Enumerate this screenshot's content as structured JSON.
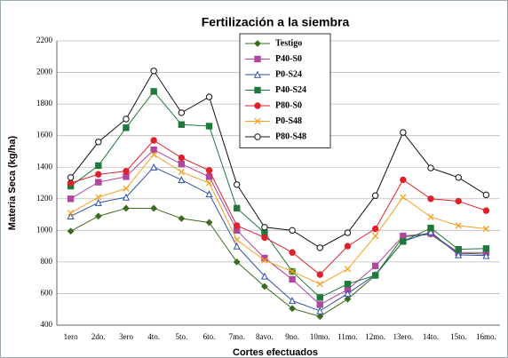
{
  "chart_data": {
    "type": "line",
    "title": "Fertilización a la siembra",
    "xlabel": "Cortes efectuados",
    "ylabel": "Materia Seca (kg/ha)",
    "categories": [
      "1ero",
      "2do.",
      "3ero",
      "4to.",
      "5to.",
      "6to.",
      "7mo.",
      "8avo.",
      "9no.",
      "10mo.",
      "11mo.",
      "12mo.",
      "13ero.",
      "14to.",
      "15to.",
      "16mo."
    ],
    "ylim": [
      400,
      2200
    ],
    "yticks": [
      400,
      600,
      800,
      1000,
      1200,
      1400,
      1600,
      1800,
      2000,
      2200
    ],
    "grid": true,
    "legend": "top",
    "series": [
      {
        "name": "Testigo",
        "color": "#3a6b1e",
        "marker": "diamond",
        "values": [
          995,
          1090,
          1140,
          1140,
          1075,
          1050,
          800,
          645,
          505,
          455,
          565,
          715,
          960,
          975,
          855,
          850
        ]
      },
      {
        "name": "P40-S0",
        "color": "#b0469e",
        "marker": "square",
        "values": [
          1200,
          1305,
          1340,
          1510,
          1420,
          1340,
          1000,
          825,
          690,
          530,
          625,
          775,
          965,
          980,
          860,
          860
        ]
      },
      {
        "name": "P0-S24",
        "color": "#2e4fa8",
        "marker": "triangle-open",
        "values": [
          1090,
          1175,
          1210,
          1400,
          1320,
          1230,
          900,
          710,
          555,
          490,
          600,
          720,
          930,
          990,
          845,
          840
        ]
      },
      {
        "name": "P40-S24",
        "color": "#1e7a3a",
        "marker": "square",
        "values": [
          1280,
          1410,
          1650,
          1880,
          1670,
          1660,
          1140,
          985,
          740,
          575,
          660,
          715,
          930,
          1015,
          880,
          885
        ]
      },
      {
        "name": "P80-S0",
        "color": "#e0202a",
        "marker": "circle",
        "values": [
          1300,
          1355,
          1375,
          1570,
          1460,
          1380,
          1030,
          955,
          860,
          720,
          900,
          1010,
          1320,
          1200,
          1185,
          1125
        ]
      },
      {
        "name": "P0-S48",
        "color": "#f5a020",
        "marker": "x",
        "values": [
          1110,
          1210,
          1265,
          1480,
          1370,
          1300,
          940,
          810,
          740,
          660,
          755,
          965,
          1210,
          1085,
          1030,
          1010
        ]
      },
      {
        "name": "P80-S48",
        "color": "#111111",
        "marker": "circle-open",
        "values": [
          1335,
          1560,
          1705,
          2010,
          1745,
          1845,
          1290,
          1020,
          1000,
          890,
          985,
          1220,
          1620,
          1395,
          1335,
          1225
        ]
      }
    ]
  }
}
